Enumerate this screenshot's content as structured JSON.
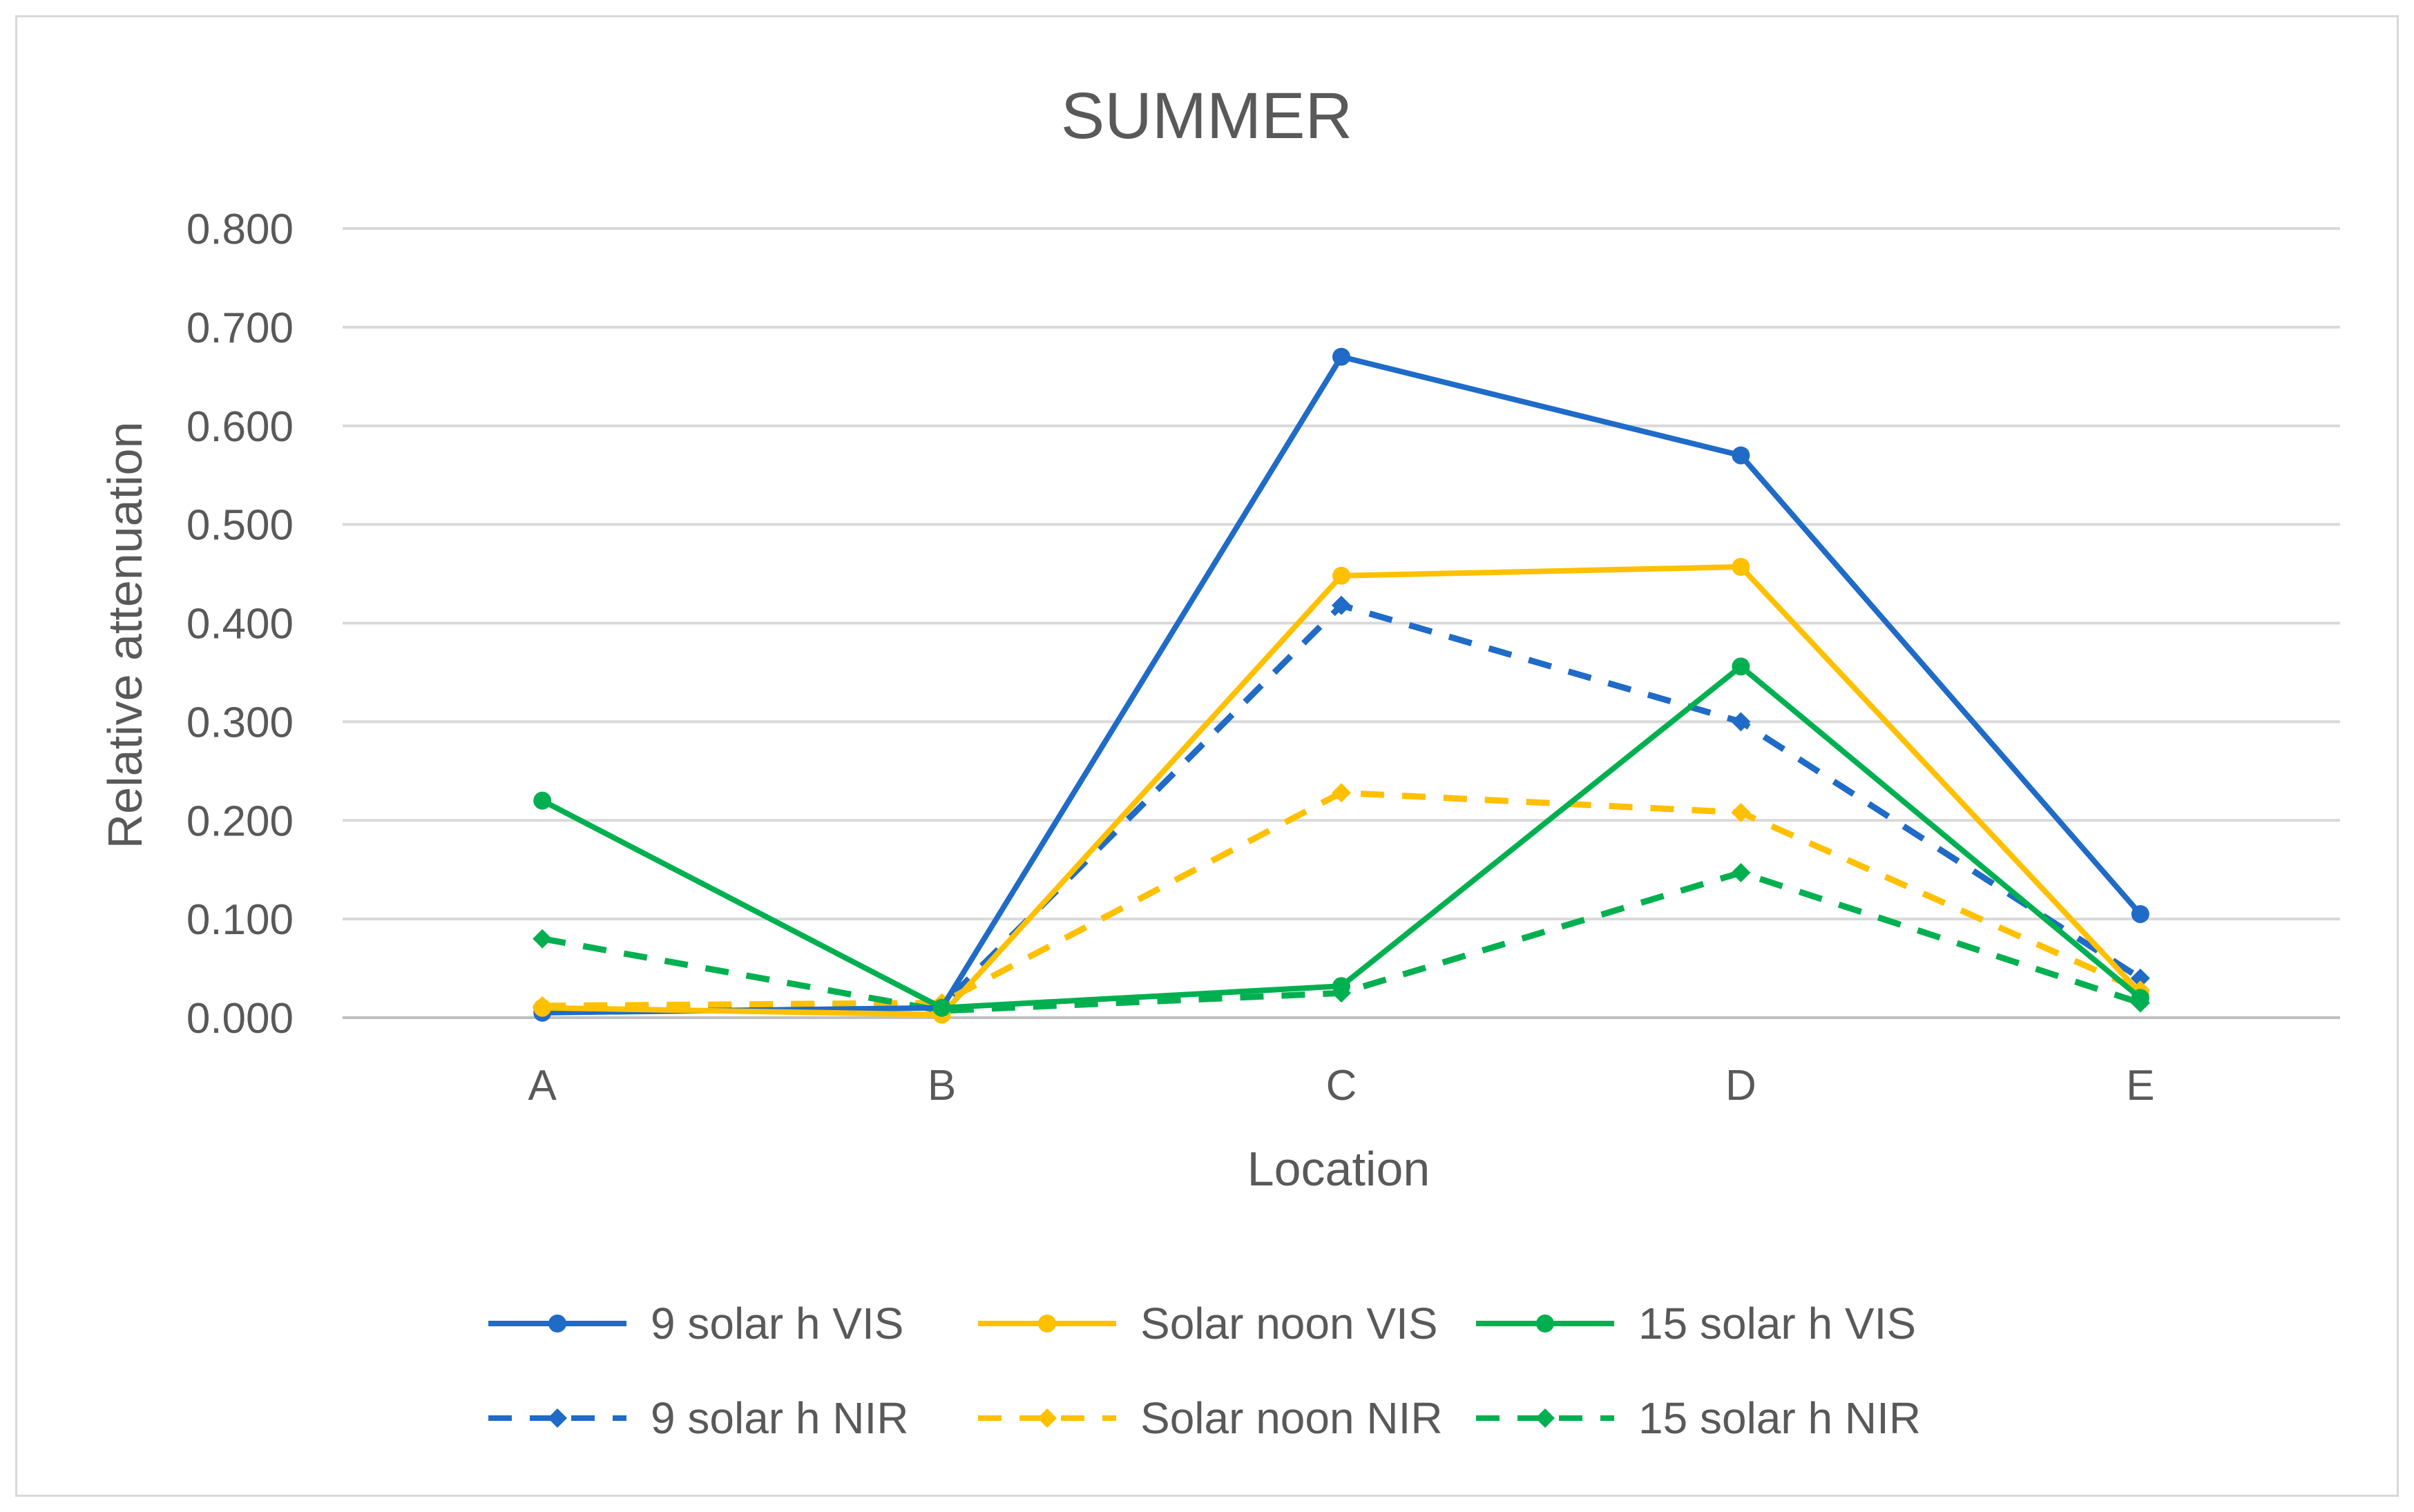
{
  "chart_data": {
    "type": "line",
    "title": "SUMMER",
    "xlabel": "Location",
    "ylabel": "Relative attenuation",
    "categories": [
      "A",
      "B",
      "C",
      "D",
      "E"
    ],
    "ylim": [
      0,
      0.8
    ],
    "yticks": [
      "0.000",
      "0.100",
      "0.200",
      "0.300",
      "0.400",
      "0.500",
      "0.600",
      "0.700",
      "0.800"
    ],
    "grid": true,
    "legend_position": "bottom",
    "series": [
      {
        "name": "9 solar h VIS",
        "values": [
          0.005,
          0.01,
          0.67,
          0.57,
          0.105
        ],
        "color": "#1f6bc7",
        "dashed": false
      },
      {
        "name": "Solar noon VIS",
        "values": [
          0.01,
          0.003,
          0.448,
          0.457,
          0.025
        ],
        "color": "#ffc000",
        "dashed": false
      },
      {
        "name": "15 solar h VIS",
        "values": [
          0.22,
          0.01,
          0.032,
          0.356,
          0.02
        ],
        "color": "#00b050",
        "dashed": false
      },
      {
        "name": "9 solar h NIR",
        "values": [
          0.01,
          0.012,
          0.418,
          0.3,
          0.04
        ],
        "color": "#1f6bc7",
        "dashed": true
      },
      {
        "name": "Solar noon NIR",
        "values": [
          0.012,
          0.015,
          0.228,
          0.208,
          0.028
        ],
        "color": "#ffc000",
        "dashed": true
      },
      {
        "name": "15 solar h NIR",
        "values": [
          0.08,
          0.007,
          0.025,
          0.147,
          0.015
        ],
        "color": "#00b050",
        "dashed": true
      }
    ]
  }
}
